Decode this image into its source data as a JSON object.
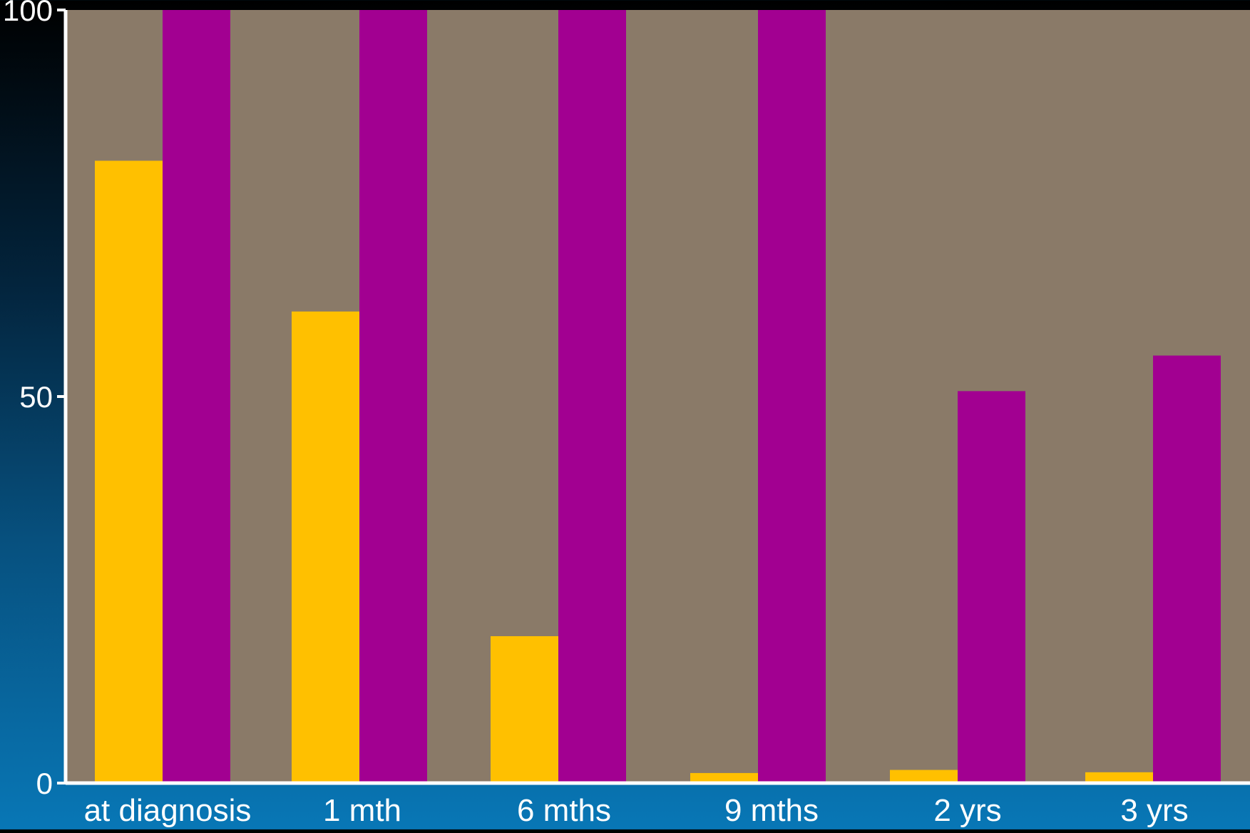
{
  "chart_data": {
    "type": "bar",
    "categories": [
      "at diagnosis",
      "1 mth",
      "6 mths",
      "9 mths",
      "2 yrs",
      "3 yrs"
    ],
    "series": [
      {
        "color": "#FFC000",
        "values": [
          80.5,
          61,
          19,
          1.3,
          1.7,
          1.4
        ]
      },
      {
        "color": "#A20091",
        "values": [
          100,
          100,
          100,
          100,
          50.7,
          55.3
        ]
      }
    ],
    "ylim": [
      0,
      100
    ],
    "y_ticks": [
      "0",
      "50",
      "100"
    ],
    "xlabel": "",
    "ylabel": "",
    "title": "",
    "grid": false,
    "legend": "none",
    "colors": {
      "plot_background": "#8A7A68",
      "axis": "#FFFFFF",
      "text": "#FFFFFF"
    }
  }
}
